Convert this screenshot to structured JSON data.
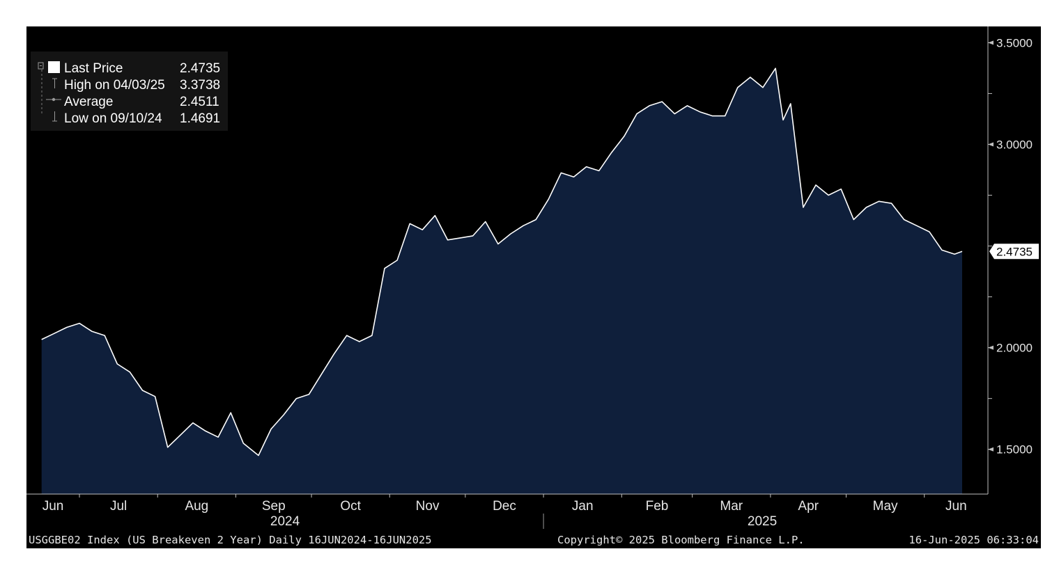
{
  "chart_data": {
    "type": "area",
    "ticker": "USGGBE02 Index (US Breakeven 2 Year)",
    "y_ticks": [
      "1.5000",
      "2.0000",
      "3.0000",
      "3.5000"
    ],
    "ylim": [
      1.28,
      3.58
    ],
    "x_month_labels": [
      "Jun",
      "Jul",
      "Aug",
      "Sep",
      "Oct",
      "Nov",
      "Dec",
      "Jan",
      "Feb",
      "Mar",
      "Apr",
      "May",
      "Jun"
    ],
    "x_year_labels": [
      "2024",
      "2025"
    ],
    "last_price_tag": "2.4735",
    "legend": [
      {
        "label": "Last Price",
        "value": "2.4735"
      },
      {
        "label": "High on 04/03/25",
        "value": "3.3738"
      },
      {
        "label": "Average",
        "value": "2.4511"
      },
      {
        "label": "Low on 09/10/24",
        "value": "1.4691"
      }
    ],
    "series": [
      {
        "x": [
          "2024-06-16",
          "2024-06-21",
          "2024-06-26",
          "2024-07-01",
          "2024-07-06",
          "2024-07-11",
          "2024-07-16",
          "2024-07-21",
          "2024-07-26",
          "2024-07-31",
          "2024-08-05",
          "2024-08-10",
          "2024-08-15",
          "2024-08-20",
          "2024-08-25",
          "2024-08-30",
          "2024-09-04",
          "2024-09-10",
          "2024-09-15",
          "2024-09-20",
          "2024-09-25",
          "2024-09-30",
          "2024-10-05",
          "2024-10-10",
          "2024-10-15",
          "2024-10-20",
          "2024-10-25",
          "2024-10-30",
          "2024-11-04",
          "2024-11-09",
          "2024-11-14",
          "2024-11-19",
          "2024-11-24",
          "2024-11-29",
          "2024-12-04",
          "2024-12-09",
          "2024-12-14",
          "2024-12-19",
          "2024-12-24",
          "2024-12-29",
          "2025-01-03",
          "2025-01-08",
          "2025-01-13",
          "2025-01-18",
          "2025-01-23",
          "2025-01-28",
          "2025-02-02",
          "2025-02-07",
          "2025-02-12",
          "2025-02-17",
          "2025-02-22",
          "2025-02-27",
          "2025-03-04",
          "2025-03-09",
          "2025-03-14",
          "2025-03-19",
          "2025-03-24",
          "2025-03-29",
          "2025-04-03",
          "2025-04-06",
          "2025-04-09",
          "2025-04-14",
          "2025-04-19",
          "2025-04-24",
          "2025-04-29",
          "2025-05-04",
          "2025-05-09",
          "2025-05-14",
          "2025-05-19",
          "2025-05-24",
          "2025-05-29",
          "2025-06-03",
          "2025-06-08",
          "2025-06-13",
          "2025-06-16"
        ],
        "values": [
          2.04,
          2.07,
          2.1,
          2.12,
          2.08,
          2.06,
          1.92,
          1.88,
          1.79,
          1.76,
          1.51,
          1.57,
          1.63,
          1.59,
          1.56,
          1.68,
          1.53,
          1.47,
          1.6,
          1.67,
          1.75,
          1.77,
          1.87,
          1.97,
          2.06,
          2.03,
          2.06,
          2.39,
          2.43,
          2.61,
          2.58,
          2.65,
          2.53,
          2.54,
          2.55,
          2.62,
          2.51,
          2.56,
          2.6,
          2.63,
          2.73,
          2.86,
          2.84,
          2.89,
          2.87,
          2.96,
          3.04,
          3.15,
          3.19,
          3.21,
          3.15,
          3.19,
          3.16,
          3.14,
          3.14,
          3.28,
          3.33,
          3.28,
          3.3738,
          3.12,
          3.2,
          2.69,
          2.8,
          2.75,
          2.78,
          2.63,
          2.69,
          2.72,
          2.71,
          2.63,
          2.6,
          2.57,
          2.48,
          2.46,
          2.4735
        ]
      }
    ],
    "colors": {
      "fill": "#0f1f3b",
      "line": "#ffffff",
      "background": "#000000",
      "label_bg": "#ffffff",
      "legend_bg": "#141414"
    }
  },
  "footer": {
    "left": "USGGBE02 Index (US Breakeven 2 Year)  Daily 16JUN2024-16JUN2025",
    "center": "Copyright© 2025 Bloomberg Finance L.P.",
    "right": "16-Jun-2025 06:33:04"
  }
}
